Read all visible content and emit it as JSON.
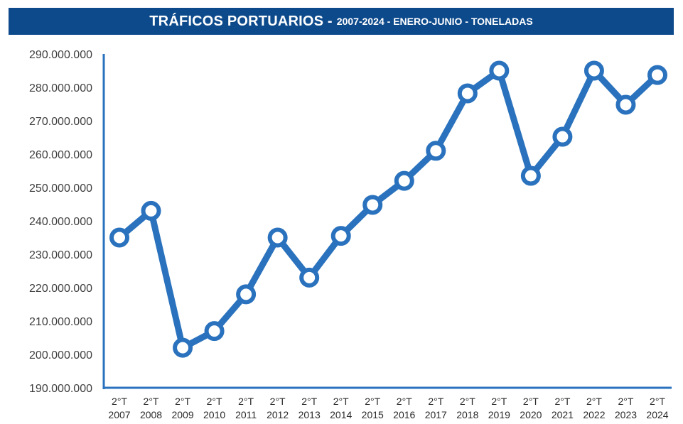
{
  "title": {
    "main": "TRÁFICOS PORTUARIOS -",
    "sub": "2007-2024 - ENERO-JUNIO - TONELADAS"
  },
  "colors": {
    "banner": "#0d4a8c",
    "line": "#2a72bd",
    "axis": "#2a72bd",
    "text": "#3e3e3e"
  },
  "chart_data": {
    "type": "line",
    "title": "TRÁFICOS PORTUARIOS - 2007-2024 - ENERO-JUNIO - TONELADAS",
    "xlabel": "",
    "ylabel": "",
    "ylim": [
      190000000,
      290000000
    ],
    "grid": false,
    "legend": "none",
    "yticks": [
      190000000,
      200000000,
      210000000,
      220000000,
      230000000,
      240000000,
      250000000,
      260000000,
      270000000,
      280000000,
      290000000
    ],
    "ytick_labels": [
      "190.000.000",
      "200.000.000",
      "210.000.000",
      "220.000.000",
      "230.000.000",
      "240.000.000",
      "250.000.000",
      "260.000.000",
      "270.000.000",
      "280.000.000",
      "290.000.000"
    ],
    "categories": [
      [
        "2°T",
        "2007"
      ],
      [
        "2°T",
        "2008"
      ],
      [
        "2°T",
        "2009"
      ],
      [
        "2°T",
        "2010"
      ],
      [
        "2°T",
        "2011"
      ],
      [
        "2°T",
        "2012"
      ],
      [
        "2°T",
        "2013"
      ],
      [
        "2°T",
        "2014"
      ],
      [
        "2°T",
        "2015"
      ],
      [
        "2°T",
        "2016"
      ],
      [
        "2°T",
        "2017"
      ],
      [
        "2°T",
        "2018"
      ],
      [
        "2°T",
        "2019"
      ],
      [
        "2°T",
        "2020"
      ],
      [
        "2°T",
        "2021"
      ],
      [
        "2°T",
        "2022"
      ],
      [
        "2°T",
        "2023"
      ],
      [
        "2°T",
        "2024"
      ]
    ],
    "series": [
      {
        "values": [
          235000000,
          243000000,
          202000000,
          207000000,
          218000000,
          235000000,
          223000000,
          235500000,
          244800000,
          252000000,
          261000000,
          278200000,
          285000000,
          253500000,
          265200000,
          285000000,
          274800000,
          283700000
        ]
      }
    ]
  }
}
